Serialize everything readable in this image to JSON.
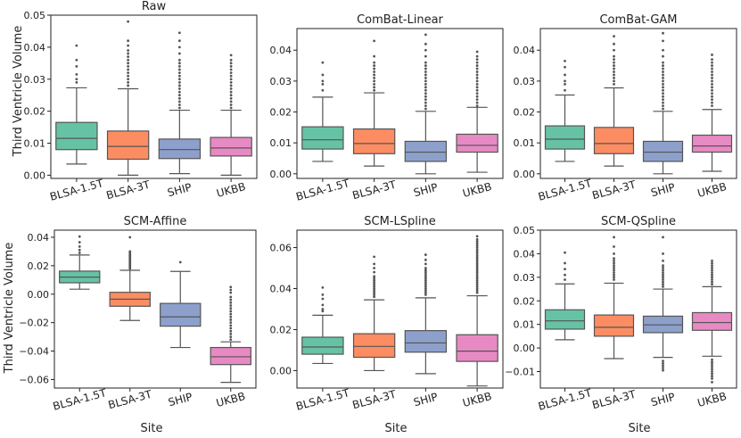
{
  "figure": {
    "ylabel": "Third Ventricle Volume",
    "xlabel": "Site",
    "colors": {
      "BLSA-1.5T": "#66c2a5",
      "BLSA-3T": "#fc8d62",
      "SHIP": "#8da0cb",
      "UKBB": "#e78ac3"
    }
  },
  "chart_data": [
    {
      "type": "box",
      "title": "Raw",
      "categories": [
        "BLSA-1.5T",
        "BLSA-3T",
        "SHIP",
        "UKBB"
      ],
      "ylim": [
        -0.001,
        0.05
      ],
      "yticks": [
        0.0,
        0.01,
        0.02,
        0.03,
        0.04,
        0.05
      ],
      "ytick_labels": [
        "0.00",
        "0.01",
        "0.02",
        "0.03",
        "0.04",
        "0.05"
      ],
      "boxes": [
        {
          "q1": 0.008,
          "med": 0.0115,
          "q3": 0.0165,
          "lo": 0.0035,
          "hi": 0.0273,
          "fliers": [
            0.029,
            0.03,
            0.0315,
            0.034,
            0.036,
            0.0405
          ]
        },
        {
          "q1": 0.005,
          "med": 0.009,
          "q3": 0.0138,
          "lo": 0.0,
          "hi": 0.027,
          "fliers": [
            0.028,
            0.029,
            0.03,
            0.031,
            0.032,
            0.033,
            0.034,
            0.035,
            0.036,
            0.037,
            0.038,
            0.039,
            0.0405,
            0.042,
            0.048
          ]
        },
        {
          "q1": 0.0052,
          "med": 0.008,
          "q3": 0.0113,
          "lo": 0.0005,
          "hi": 0.0203,
          "fliers": [
            0.021,
            0.022,
            0.023,
            0.024,
            0.025,
            0.026,
            0.027,
            0.028,
            0.029,
            0.03,
            0.031,
            0.032,
            0.033,
            0.034,
            0.035,
            0.036,
            0.038,
            0.04,
            0.042,
            0.0445
          ]
        },
        {
          "q1": 0.006,
          "med": 0.0085,
          "q3": 0.0118,
          "lo": 0.0,
          "hi": 0.0203,
          "fliers": [
            0.021,
            0.022,
            0.023,
            0.024,
            0.025,
            0.026,
            0.027,
            0.028,
            0.029,
            0.03,
            0.031,
            0.032,
            0.033,
            0.034,
            0.035,
            0.036,
            0.0375
          ]
        }
      ]
    },
    {
      "type": "box",
      "title": "ComBat-Linear",
      "categories": [
        "BLSA-1.5T",
        "BLSA-3T",
        "SHIP",
        "UKBB"
      ],
      "ylim": [
        -0.0015,
        0.047
      ],
      "yticks": [
        0.0,
        0.01,
        0.02,
        0.03,
        0.04
      ],
      "ytick_labels": [
        "0.00",
        "0.01",
        "0.02",
        "0.03",
        "0.04"
      ],
      "boxes": [
        {
          "q1": 0.008,
          "med": 0.011,
          "q3": 0.0152,
          "lo": 0.004,
          "hi": 0.0248,
          "fliers": [
            0.027,
            0.029,
            0.03,
            0.032,
            0.036
          ]
        },
        {
          "q1": 0.0065,
          "med": 0.0098,
          "q3": 0.0145,
          "lo": 0.0025,
          "hi": 0.0262,
          "fliers": [
            0.027,
            0.028,
            0.029,
            0.03,
            0.031,
            0.032,
            0.033,
            0.034,
            0.035,
            0.036,
            0.038,
            0.043
          ]
        },
        {
          "q1": 0.004,
          "med": 0.007,
          "q3": 0.0105,
          "lo": 0.0,
          "hi": 0.0202,
          "fliers": [
            0.021,
            0.022,
            0.023,
            0.024,
            0.025,
            0.026,
            0.027,
            0.028,
            0.029,
            0.03,
            0.031,
            0.032,
            0.033,
            0.034,
            0.035,
            0.036,
            0.038,
            0.04,
            0.042,
            0.045
          ]
        },
        {
          "q1": 0.007,
          "med": 0.0092,
          "q3": 0.0128,
          "lo": 0.0005,
          "hi": 0.0215,
          "fliers": [
            0.022,
            0.023,
            0.024,
            0.025,
            0.026,
            0.027,
            0.028,
            0.029,
            0.03,
            0.031,
            0.032,
            0.033,
            0.034,
            0.035,
            0.036,
            0.037,
            0.038,
            0.0395
          ]
        }
      ]
    },
    {
      "type": "box",
      "title": "ComBat-GAM",
      "categories": [
        "BLSA-1.5T",
        "BLSA-3T",
        "SHIP",
        "UKBB"
      ],
      "ylim": [
        -0.0015,
        0.047
      ],
      "yticks": [
        0.0,
        0.01,
        0.02,
        0.03,
        0.04
      ],
      "ytick_labels": [
        "0.00",
        "0.01",
        "0.02",
        "0.03",
        "0.04"
      ],
      "boxes": [
        {
          "q1": 0.008,
          "med": 0.0112,
          "q3": 0.0155,
          "lo": 0.004,
          "hi": 0.0255,
          "fliers": [
            0.027,
            0.029,
            0.03,
            0.032,
            0.0345,
            0.0365
          ]
        },
        {
          "q1": 0.0065,
          "med": 0.0098,
          "q3": 0.015,
          "lo": 0.0025,
          "hi": 0.0278,
          "fliers": [
            0.029,
            0.03,
            0.031,
            0.032,
            0.033,
            0.034,
            0.035,
            0.036,
            0.037,
            0.038,
            0.04,
            0.042,
            0.0445
          ]
        },
        {
          "q1": 0.004,
          "med": 0.007,
          "q3": 0.0105,
          "lo": 0.0,
          "hi": 0.0202,
          "fliers": [
            0.021,
            0.022,
            0.023,
            0.024,
            0.025,
            0.026,
            0.027,
            0.028,
            0.029,
            0.03,
            0.031,
            0.032,
            0.033,
            0.034,
            0.035,
            0.036,
            0.038,
            0.04,
            0.043,
            0.0455
          ]
        },
        {
          "q1": 0.007,
          "med": 0.009,
          "q3": 0.0125,
          "lo": 0.0008,
          "hi": 0.0208,
          "fliers": [
            0.022,
            0.023,
            0.024,
            0.025,
            0.026,
            0.027,
            0.028,
            0.029,
            0.03,
            0.031,
            0.032,
            0.033,
            0.034,
            0.035,
            0.036,
            0.037,
            0.0385
          ]
        }
      ]
    },
    {
      "type": "box",
      "title": "SCM-Affine",
      "categories": [
        "BLSA-1.5T",
        "BLSA-3T",
        "SHIP",
        "UKBB"
      ],
      "ylim": [
        -0.066,
        0.045
      ],
      "yticks": [
        -0.06,
        -0.04,
        -0.02,
        0.0,
        0.02,
        0.04
      ],
      "ytick_labels": [
        "−0.06",
        "−0.04",
        "−0.02",
        "0.00",
        "0.02",
        "0.04"
      ],
      "boxes": [
        {
          "q1": 0.008,
          "med": 0.012,
          "q3": 0.0162,
          "lo": 0.0035,
          "hi": 0.0275,
          "fliers": [
            0.029,
            0.031,
            0.0335,
            0.0365,
            0.0405
          ]
        },
        {
          "q1": -0.0085,
          "med": -0.0035,
          "q3": 0.0013,
          "lo": -0.0185,
          "hi": 0.0168,
          "fliers": [
            0.018,
            0.019,
            0.02,
            0.021,
            0.022,
            0.023,
            0.024,
            0.025,
            0.026,
            0.027,
            0.028,
            0.029,
            0.03,
            0.04
          ]
        },
        {
          "q1": -0.0225,
          "med": -0.016,
          "q3": -0.0065,
          "lo": -0.0375,
          "hi": 0.016,
          "fliers": [
            0.0225
          ]
        },
        {
          "q1": -0.0495,
          "med": -0.044,
          "q3": -0.0375,
          "lo": -0.062,
          "hi": -0.0335,
          "fliers": [
            -0.032,
            -0.03,
            -0.028,
            -0.026,
            -0.024,
            -0.022,
            -0.02,
            -0.018,
            -0.016,
            -0.014,
            -0.012,
            -0.01,
            -0.008,
            -0.006,
            -0.004,
            -0.002,
            0.001,
            0.003,
            0.005
          ]
        }
      ]
    },
    {
      "type": "box",
      "title": "SCM-LSpline",
      "categories": [
        "BLSA-1.5T",
        "BLSA-3T",
        "SHIP",
        "UKBB"
      ],
      "ylim": [
        -0.0085,
        0.0685
      ],
      "yticks": [
        0.0,
        0.02,
        0.04,
        0.06
      ],
      "ytick_labels": [
        "0.00",
        "0.02",
        "0.04",
        "0.06"
      ],
      "boxes": [
        {
          "q1": 0.008,
          "med": 0.0115,
          "q3": 0.0163,
          "lo": 0.0035,
          "hi": 0.027,
          "fliers": [
            0.029,
            0.03,
            0.032,
            0.035,
            0.037,
            0.0405
          ]
        },
        {
          "q1": 0.0065,
          "med": 0.0118,
          "q3": 0.018,
          "lo": 0.0,
          "hi": 0.0345,
          "fliers": [
            0.036,
            0.037,
            0.038,
            0.039,
            0.04,
            0.041,
            0.042,
            0.043,
            0.044,
            0.045,
            0.046,
            0.048,
            0.05,
            0.052,
            0.0555
          ]
        },
        {
          "q1": 0.009,
          "med": 0.0135,
          "q3": 0.0195,
          "lo": -0.0015,
          "hi": 0.0355,
          "fliers": [
            0.037,
            0.038,
            0.039,
            0.04,
            0.041,
            0.042,
            0.043,
            0.044,
            0.045,
            0.046,
            0.047,
            0.048,
            0.049,
            0.05,
            0.052,
            0.054,
            0.0565
          ]
        },
        {
          "q1": 0.0045,
          "med": 0.0095,
          "q3": 0.0175,
          "lo": -0.0075,
          "hi": 0.0365,
          "fliers": [
            0.038,
            0.039,
            0.04,
            0.041,
            0.042,
            0.043,
            0.044,
            0.045,
            0.046,
            0.047,
            0.048,
            0.049,
            0.05,
            0.051,
            0.052,
            0.053,
            0.054,
            0.055,
            0.056,
            0.057,
            0.058,
            0.059,
            0.06,
            0.061,
            0.062,
            0.063,
            0.064,
            0.0655
          ]
        }
      ]
    },
    {
      "type": "box",
      "title": "SCM-QSpline",
      "categories": [
        "BLSA-1.5T",
        "BLSA-3T",
        "SHIP",
        "UKBB"
      ],
      "ylim": [
        -0.017,
        0.05
      ],
      "yticks": [
        -0.01,
        0.0,
        0.01,
        0.02,
        0.03,
        0.04,
        0.05
      ],
      "ytick_labels": [
        "−0.01",
        "0.00",
        "0.01",
        "0.02",
        "0.03",
        "0.04",
        "0.05"
      ],
      "boxes": [
        {
          "q1": 0.008,
          "med": 0.0115,
          "q3": 0.0162,
          "lo": 0.0035,
          "hi": 0.0272,
          "fliers": [
            0.029,
            0.031,
            0.0335,
            0.036,
            0.0405
          ]
        },
        {
          "q1": 0.005,
          "med": 0.0088,
          "q3": 0.014,
          "lo": -0.0045,
          "hi": 0.0275,
          "fliers": [
            0.029,
            0.03,
            0.031,
            0.032,
            0.033,
            0.034,
            0.035,
            0.036,
            0.037,
            0.038,
            0.04,
            0.043,
            0.047
          ]
        },
        {
          "q1": 0.0065,
          "med": 0.0098,
          "q3": 0.0135,
          "lo": -0.004,
          "hi": 0.025,
          "fliers": [
            0.026,
            0.027,
            0.028,
            0.029,
            0.03,
            0.031,
            0.032,
            0.033,
            0.034,
            0.035,
            0.037,
            0.04,
            0.047,
            -0.0055,
            -0.0065,
            -0.0075,
            -0.0085,
            -0.0095
          ]
        },
        {
          "q1": 0.0075,
          "med": 0.0108,
          "q3": 0.015,
          "lo": -0.0035,
          "hi": 0.026,
          "fliers": [
            0.027,
            0.028,
            0.029,
            0.03,
            0.031,
            0.032,
            0.033,
            0.034,
            0.035,
            0.036,
            0.037,
            -0.005,
            -0.006,
            -0.007,
            -0.008,
            -0.009,
            -0.01,
            -0.011,
            -0.012,
            -0.013,
            -0.0145
          ]
        }
      ]
    }
  ]
}
